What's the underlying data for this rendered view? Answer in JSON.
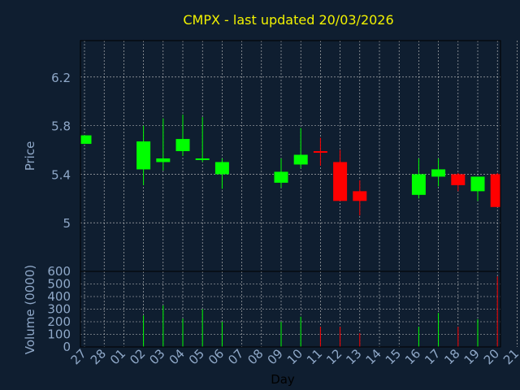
{
  "colors": {
    "background": "#0f1e30",
    "title": "#f2f200",
    "axis_text": "#8fa8c8",
    "grid": "#c8c8c8",
    "up": "#00ff00",
    "down": "#ff0000"
  },
  "chart_data": [
    {
      "type": "candlestick",
      "title": "CMPX - last updated 20/03/2026",
      "xlabel": "",
      "ylabel": "Price",
      "ylim": [
        4.6,
        6.5
      ],
      "yticks": [
        5,
        5.4,
        5.8,
        6.2
      ],
      "ytick_labels": [
        "5",
        "5.4",
        "5.8",
        "6.2"
      ],
      "grid": true,
      "x_labels": [
        "27",
        "28",
        "01",
        "02",
        "03",
        "04",
        "05",
        "06",
        "07",
        "08",
        "09",
        "10",
        "11",
        "12",
        "13",
        "14",
        "15",
        "16",
        "17",
        "18",
        "19",
        "20",
        "21"
      ],
      "candles": [
        {
          "x": 0,
          "open": 5.65,
          "high": 5.72,
          "low": 5.65,
          "close": 5.72
        },
        {
          "x": 3,
          "open": 5.44,
          "high": 5.8,
          "low": 5.31,
          "close": 5.67
        },
        {
          "x": 4,
          "open": 5.5,
          "high": 5.86,
          "low": 5.43,
          "close": 5.53
        },
        {
          "x": 5,
          "open": 5.59,
          "high": 5.89,
          "low": 5.55,
          "close": 5.69
        },
        {
          "x": 6,
          "open": 5.52,
          "high": 5.87,
          "low": 5.5,
          "close": 5.53
        },
        {
          "x": 7,
          "open": 5.4,
          "high": 5.53,
          "low": 5.28,
          "close": 5.5
        },
        {
          "x": 10,
          "open": 5.33,
          "high": 5.53,
          "low": 5.29,
          "close": 5.42
        },
        {
          "x": 11,
          "open": 5.48,
          "high": 5.78,
          "low": 5.45,
          "close": 5.56
        },
        {
          "x": 12,
          "open": 5.59,
          "high": 5.7,
          "low": 5.47,
          "close": 5.58
        },
        {
          "x": 13,
          "open": 5.5,
          "high": 5.6,
          "low": 5.18,
          "close": 5.18
        },
        {
          "x": 14,
          "open": 5.26,
          "high": 5.35,
          "low": 5.06,
          "close": 5.18
        },
        {
          "x": 17,
          "open": 5.23,
          "high": 5.53,
          "low": 5.2,
          "close": 5.4
        },
        {
          "x": 18,
          "open": 5.38,
          "high": 5.53,
          "low": 5.3,
          "close": 5.44
        },
        {
          "x": 19,
          "open": 5.4,
          "high": 5.41,
          "low": 5.26,
          "close": 5.31
        },
        {
          "x": 20,
          "open": 5.26,
          "high": 5.38,
          "low": 5.18,
          "close": 5.38
        },
        {
          "x": 21,
          "open": 5.4,
          "high": 5.41,
          "low": 5.13,
          "close": 5.13
        }
      ]
    },
    {
      "type": "bar",
      "title": "",
      "xlabel": "Day",
      "ylabel": "Volume (0000)",
      "ylim": [
        0,
        600
      ],
      "yticks": [
        0,
        100,
        200,
        300,
        400,
        500,
        600
      ],
      "ytick_labels": [
        "0",
        "100",
        "200",
        "300",
        "400",
        "500",
        "600"
      ],
      "grid": true,
      "x_labels": [
        "27",
        "28",
        "01",
        "02",
        "03",
        "04",
        "05",
        "06",
        "07",
        "08",
        "09",
        "10",
        "11",
        "12",
        "13",
        "14",
        "15",
        "16",
        "17",
        "18",
        "19",
        "20",
        "21"
      ],
      "bars": [
        {
          "x": 0,
          "value": 0,
          "dir": "down"
        },
        {
          "x": 3,
          "value": 250,
          "dir": "up"
        },
        {
          "x": 4,
          "value": 330,
          "dir": "up"
        },
        {
          "x": 5,
          "value": 225,
          "dir": "up"
        },
        {
          "x": 6,
          "value": 300,
          "dir": "up"
        },
        {
          "x": 7,
          "value": 200,
          "dir": "up"
        },
        {
          "x": 10,
          "value": 200,
          "dir": "up"
        },
        {
          "x": 11,
          "value": 240,
          "dir": "up"
        },
        {
          "x": 12,
          "value": 160,
          "dir": "down"
        },
        {
          "x": 13,
          "value": 160,
          "dir": "down"
        },
        {
          "x": 14,
          "value": 110,
          "dir": "down"
        },
        {
          "x": 17,
          "value": 160,
          "dir": "up"
        },
        {
          "x": 18,
          "value": 270,
          "dir": "up"
        },
        {
          "x": 19,
          "value": 160,
          "dir": "down"
        },
        {
          "x": 20,
          "value": 220,
          "dir": "up"
        },
        {
          "x": 21,
          "value": 560,
          "dir": "down"
        }
      ]
    }
  ]
}
